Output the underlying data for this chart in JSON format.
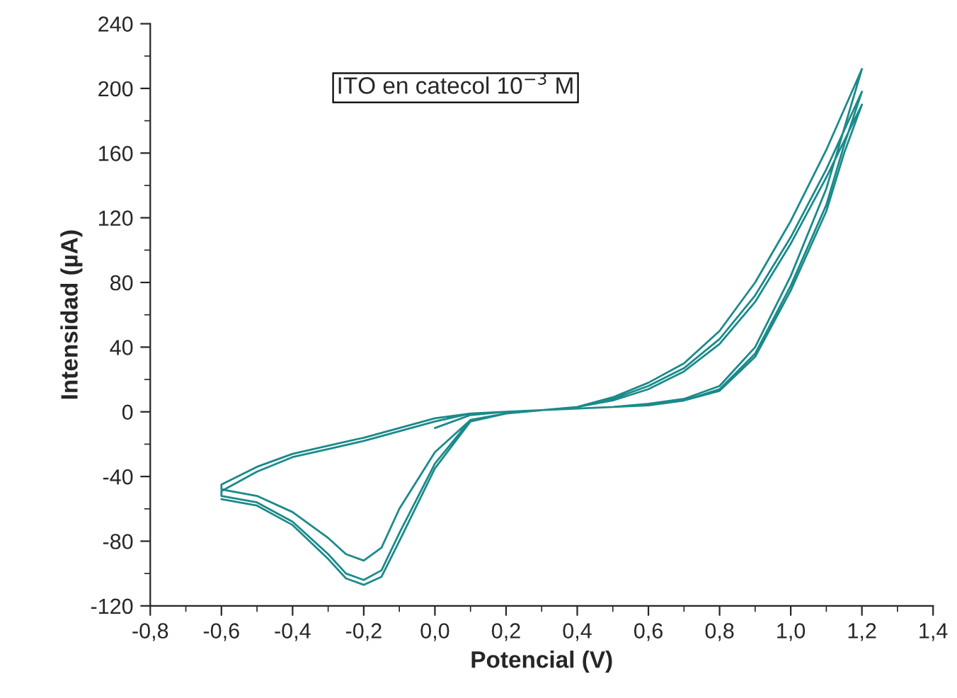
{
  "chart_data": {
    "type": "line",
    "xlabel": "Potencial (V)",
    "ylabel": "Intensidad (µA)",
    "annotations": [
      "ITO en catecol 10$^{−3}$ M"
    ],
    "xlim": [
      -0.8,
      1.4
    ],
    "ylim": [
      -120,
      240
    ],
    "xticks": [
      {
        "value": -0.8,
        "label": "-0,8"
      },
      {
        "value": -0.6,
        "label": "-0,6"
      },
      {
        "value": -0.4,
        "label": "-0,4"
      },
      {
        "value": -0.2,
        "label": "-0,2"
      },
      {
        "value": 0.0,
        "label": "0,0"
      },
      {
        "value": 0.2,
        "label": "0,2"
      },
      {
        "value": 0.4,
        "label": "0,4"
      },
      {
        "value": 0.6,
        "label": "0,6"
      },
      {
        "value": 0.8,
        "label": "0,8"
      },
      {
        "value": 1.0,
        "label": "1,0"
      },
      {
        "value": 1.2,
        "label": "1,2"
      },
      {
        "value": 1.4,
        "label": "1,4"
      }
    ],
    "yticks": [
      -120,
      -80,
      -40,
      0,
      40,
      80,
      120,
      160,
      200,
      240
    ],
    "grid": false,
    "marker": "none",
    "line_style": "solid",
    "series": [
      {
        "color": "#1b8a8a",
        "x": [
          0.0,
          0.1,
          0.2,
          0.3,
          0.4,
          0.5,
          0.6,
          0.7,
          0.8,
          0.9,
          1.0,
          1.1,
          1.2,
          1.15,
          1.1,
          1.0,
          0.9,
          0.8,
          0.7,
          0.6,
          0.5,
          0.4,
          0.3,
          0.2,
          0.1,
          0.0,
          -0.1,
          -0.15,
          -0.2,
          -0.25,
          -0.3,
          -0.4,
          -0.5,
          -0.6,
          -0.6,
          -0.5,
          -0.4,
          -0.3,
          -0.2,
          -0.1,
          0.0,
          0.1,
          0.2,
          0.3,
          0.4,
          0.5,
          0.6,
          0.7,
          0.8,
          0.9,
          1.0,
          1.1,
          1.2,
          1.15,
          1.1,
          1.0,
          0.9,
          0.8,
          0.7,
          0.6,
          0.5,
          0.4,
          0.3,
          0.2,
          0.1,
          0.0,
          -0.1,
          -0.15,
          -0.2,
          -0.25,
          -0.3,
          -0.4,
          -0.5,
          -0.6,
          -0.6,
          -0.5,
          -0.4,
          -0.3,
          -0.2,
          -0.1,
          0.0,
          0.1,
          0.2,
          0.3,
          0.4,
          0.5,
          0.6,
          0.7,
          0.8,
          0.9,
          1.0,
          1.1,
          1.2,
          1.15,
          1.1,
          1.0,
          0.9,
          0.8,
          0.7,
          0.6,
          0.5,
          0.4,
          0.3,
          0.2,
          0.1,
          0.0,
          -0.1,
          -0.15,
          -0.2,
          -0.25,
          -0.3,
          -0.4,
          -0.5,
          -0.6
        ],
        "values": [
          -10,
          -2,
          0,
          1,
          3,
          9,
          18,
          30,
          50,
          80,
          118,
          162,
          212,
          175,
          138,
          84,
          40,
          16,
          8,
          5,
          3,
          2,
          1,
          -1,
          -5,
          -25,
          -60,
          -84,
          -92,
          -88,
          -78,
          -62,
          -52,
          -48,
          -45,
          -34,
          -26,
          -21,
          -16,
          -10,
          -4,
          -1,
          0,
          1,
          3,
          8,
          16,
          27,
          45,
          72,
          108,
          150,
          198,
          165,
          128,
          78,
          36,
          14,
          7,
          5,
          3,
          2,
          1,
          -1,
          -5,
          -32,
          -75,
          -98,
          -104,
          -100,
          -88,
          -68,
          -56,
          -52,
          -49,
          -37,
          -28,
          -23,
          -18,
          -12,
          -6,
          -1,
          0,
          1,
          3,
          7,
          14,
          25,
          42,
          68,
          104,
          145,
          190,
          160,
          124,
          75,
          34,
          13,
          7,
          4,
          3,
          2,
          1,
          -1,
          -6,
          -35,
          -80,
          -102,
          -107,
          -103,
          -91,
          -70,
          -58,
          -54
        ]
      }
    ]
  }
}
